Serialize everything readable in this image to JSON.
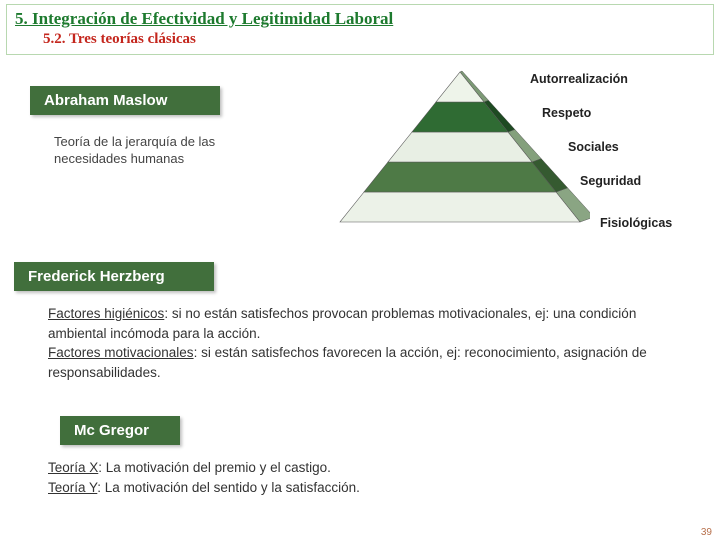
{
  "title": {
    "main": "5. Integración de Efectividad y Legitimidad Laboral",
    "sub": "5.2. Tres teorías clásicas"
  },
  "maslow": {
    "heading": "Abraham Maslow",
    "desc": "Teoría de la jerarquía de las necesidades humanas"
  },
  "pyramid": {
    "type": "pyramid",
    "levels": [
      {
        "label": "Autorrealización",
        "fill": "#eef4ea",
        "dark": "#7d9a76"
      },
      {
        "label": "Respeto",
        "fill": "#2f6b33",
        "dark": "#1e4a22"
      },
      {
        "label": "Sociales",
        "fill": "#e8efe4",
        "dark": "#84a07c"
      },
      {
        "label": "Seguridad",
        "fill": "#4e7a46",
        "dark": "#355a30"
      },
      {
        "label": "Fisiológicas",
        "fill": "#ecf2e8",
        "dark": "#8aa583"
      }
    ],
    "label_font_size": 12.5,
    "label_color": "#222222"
  },
  "herzberg": {
    "heading": "Frederick Herzberg",
    "f1_label": "Factores higiénicos",
    "f1_text": ": si no están satisfechos provocan problemas motivacionales, ej: una condición ambiental incómoda para la acción.",
    "f2_label": "Factores motivacionales",
    "f2_text": ": si están satisfechos favorecen la acción, ej: reconocimiento, asignación de responsabilidades."
  },
  "mcgregor": {
    "heading": "Mc Gregor",
    "x_label": "Teoría X",
    "x_text": ": La motivación del premio y el castigo.",
    "y_label": "Teoría Y",
    "y_text": ": La motivación del sentido y la satisfacción."
  },
  "page_number": "39",
  "colors": {
    "title_green": "#1d7a2e",
    "title_red": "#c4261d",
    "pill_bg": "#416f3c",
    "title_border": "#b8d8b0"
  }
}
